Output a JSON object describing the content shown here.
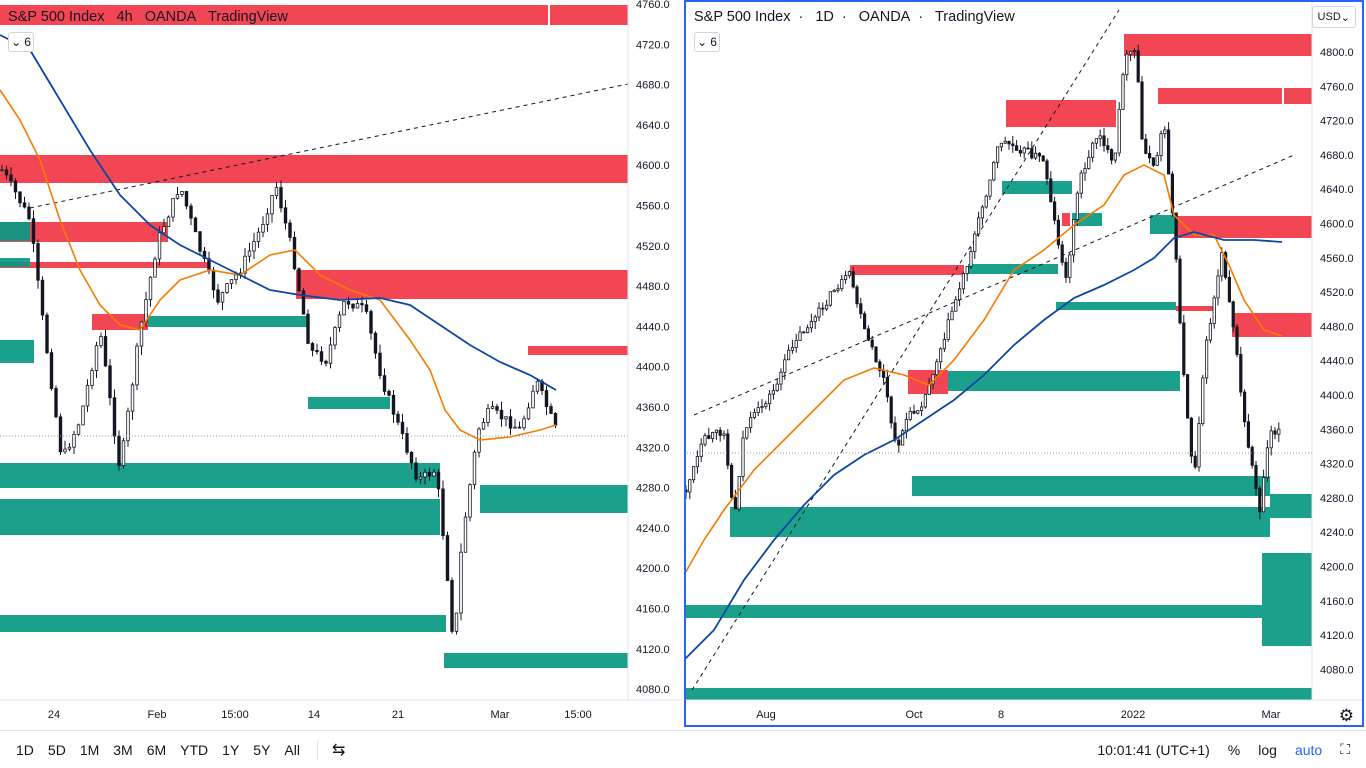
{
  "left_chart": {
    "legend": {
      "symbol": "S&P 500 Index",
      "interval": "4h",
      "source": "OANDA",
      "platform": "TradingView"
    },
    "indicator_count": "6",
    "price_axis": [
      "4760.0",
      "4720.0",
      "4680.0",
      "4640.0",
      "4600.0",
      "4560.0",
      "4520.0",
      "4480.0",
      "4440.0",
      "4400.0",
      "4360.0",
      "4320.0",
      "4280.0",
      "4240.0",
      "4200.0",
      "4160.0",
      "4120.0",
      "4080.0"
    ],
    "time_axis": [
      "24",
      "Feb",
      "15:00",
      "14",
      "21",
      "Mar",
      "15:00"
    ]
  },
  "right_chart": {
    "legend": {
      "symbol": "S&P 500 Index",
      "interval": "1D",
      "source": "OANDA",
      "platform": "TradingView"
    },
    "indicator_count": "6",
    "currency": "USD",
    "price_axis": [
      "4800.0",
      "4760.0",
      "4720.0",
      "4680.0",
      "4640.0",
      "4600.0",
      "4560.0",
      "4520.0",
      "4480.0",
      "4440.0",
      "4400.0",
      "4360.0",
      "4320.0",
      "4280.0",
      "4240.0",
      "4200.0",
      "4160.0",
      "4120.0",
      "4080.0"
    ],
    "time_axis": [
      "Aug",
      "Oct",
      "8",
      "2022",
      "Mar"
    ]
  },
  "bottom_bar": {
    "timeframes": [
      "1D",
      "5D",
      "1M",
      "3M",
      "6M",
      "YTD",
      "1Y",
      "5Y",
      "All"
    ],
    "clock": "10:01:41 (UTC+1)",
    "percent_label": "%",
    "log_label": "log",
    "auto_label": "auto"
  },
  "colors": {
    "supply": "#f23645",
    "demand": "#089981",
    "ma_fast": "#f57c00",
    "ma_slow": "#0d47a1",
    "accent": "#2962ff"
  },
  "icons": [
    "chevron-down-icon",
    "compare-icon",
    "settings-gear-icon",
    "expand-icon"
  ]
}
